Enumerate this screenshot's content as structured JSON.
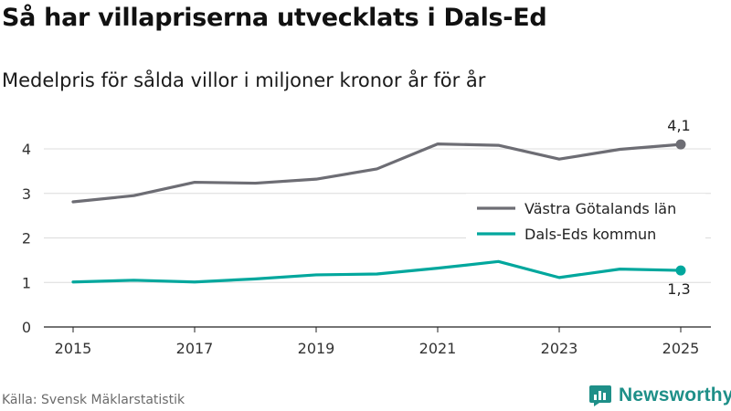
{
  "title": "Så har villapriserna utvecklats i Dals-Ed",
  "subtitle": "Medelpris för sålda villor i miljoner kronor år för år",
  "source": "Källa: Svensk Mäklarstatistik",
  "brand": {
    "name": "Newsworthy",
    "icon": "newsworthy-logo-icon",
    "color": "#1e8f88"
  },
  "chart_data": {
    "type": "line",
    "x": [
      2015,
      2016,
      2017,
      2018,
      2019,
      2020,
      2021,
      2022,
      2023,
      2024,
      2025
    ],
    "x_tick_labels": [
      "2015",
      "2017",
      "2019",
      "2021",
      "2023",
      "2025"
    ],
    "y_tick_labels": [
      "0",
      "1",
      "2",
      "3",
      "4"
    ],
    "ylim": [
      0,
      4.4
    ],
    "grid": true,
    "legend_position": "right",
    "series": [
      {
        "name": "Västra Götalands län",
        "color": "#6d6d74",
        "values": [
          2.81,
          2.95,
          3.25,
          3.23,
          3.32,
          3.55,
          4.11,
          4.08,
          3.77,
          3.99,
          4.1
        ],
        "end_label": "4,1",
        "end_label_position": "above"
      },
      {
        "name": "Dals-Eds kommun",
        "color": "#00a79d",
        "values": [
          1.01,
          1.05,
          1.01,
          1.08,
          1.17,
          1.19,
          1.32,
          1.47,
          1.11,
          1.3,
          1.27
        ],
        "end_label": "1,3",
        "end_label_position": "below"
      }
    ]
  }
}
